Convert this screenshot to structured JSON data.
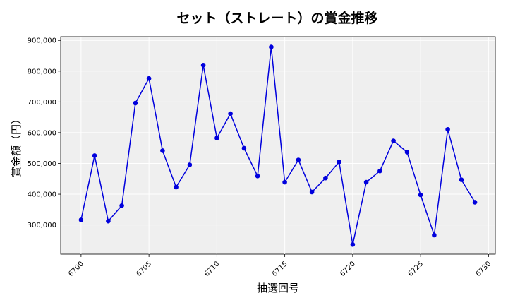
{
  "chart_data": {
    "type": "line",
    "title": "セット（ストレート）の賞金推移",
    "xlabel": "抽選回号",
    "ylabel": "賞金額（円）",
    "xlim": [
      6698.5,
      6730.5
    ],
    "ylim": [
      205000,
      912000
    ],
    "xticks": [
      6700,
      6705,
      6710,
      6715,
      6720,
      6725,
      6730
    ],
    "yticks": [
      300000,
      400000,
      500000,
      600000,
      700000,
      800000,
      900000
    ],
    "ytick_labels": [
      "300,000",
      "400,000",
      "500,000",
      "600,000",
      "700,000",
      "800,000",
      "900,000"
    ],
    "grid": true,
    "legend": "none",
    "series": [
      {
        "color": "#0000dd",
        "x": [
          6700,
          6701,
          6702,
          6703,
          6704,
          6705,
          6706,
          6707,
          6708,
          6709,
          6710,
          6711,
          6712,
          6713,
          6714,
          6715,
          6716,
          6717,
          6718,
          6719,
          6720,
          6721,
          6722,
          6723,
          6724,
          6725,
          6726,
          6727,
          6728,
          6729
        ],
        "y": [
          316500,
          525500,
          312500,
          363000,
          696000,
          776000,
          541500,
          423000,
          495500,
          819500,
          582500,
          661500,
          549500,
          459000,
          878500,
          439000,
          511500,
          407000,
          452500,
          505000,
          236500,
          439000,
          475500,
          573500,
          537000,
          397500,
          267000,
          610500,
          447000,
          374000
        ]
      }
    ],
    "plot_bg": "#efefef"
  }
}
